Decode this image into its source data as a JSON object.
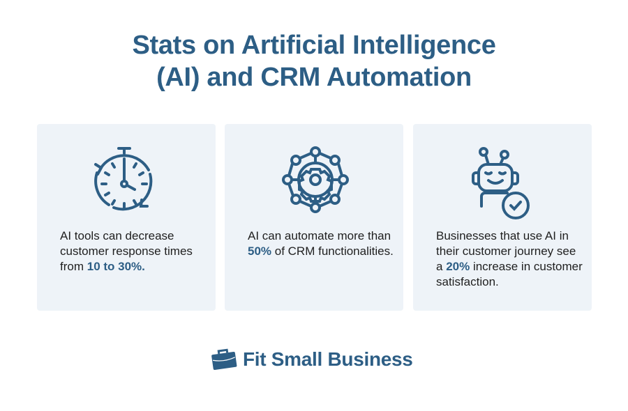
{
  "title": {
    "line1": "Stats on Artificial Intelligence",
    "line2": "(AI) and CRM Automation"
  },
  "colors": {
    "accent": "#2d5e85",
    "card_background": "#eef3f8",
    "text": "#1f1f1f"
  },
  "cards": [
    {
      "icon": "stopwatch-icon",
      "text_before": "AI tools can decrease customer response times from ",
      "highlight": "10 to 30%.",
      "text_after": ""
    },
    {
      "icon": "network-gear-icon",
      "text_before": "AI can automate more than ",
      "highlight": "50%",
      "text_after": " of CRM functionalities."
    },
    {
      "icon": "robot-check-icon",
      "text_before": "Businesses that use AI in their customer journey see a ",
      "highlight": "20%",
      "text_after": " increase in customer satisfaction."
    }
  ],
  "logo": {
    "text": "Fit Small Business",
    "icon": "briefcase-icon"
  }
}
